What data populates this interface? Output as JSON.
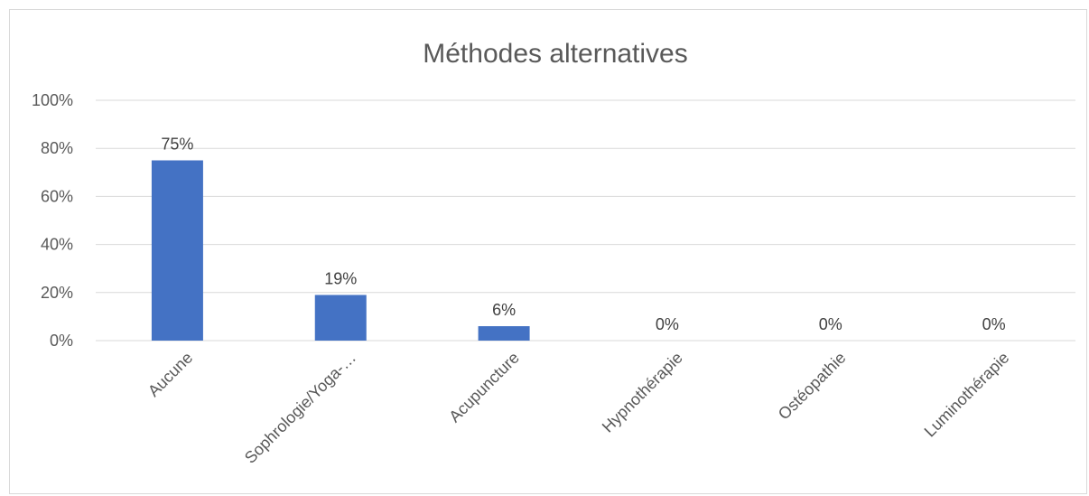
{
  "chart_data": {
    "type": "bar",
    "title": "Méthodes alternatives",
    "categories": [
      "Aucune",
      "Sophrologie/Yoga-…",
      "Acupuncture",
      "Hypnothérapie",
      "Ostéopathie",
      "Luminothérapie"
    ],
    "values": [
      75,
      19,
      6,
      0,
      0,
      0
    ],
    "data_labels": [
      "75%",
      "19%",
      "6%",
      "0%",
      "0%",
      "0%"
    ],
    "y_ticks": [
      0,
      20,
      40,
      60,
      80,
      100
    ],
    "y_tick_labels": [
      "0%",
      "20%",
      "40%",
      "60%",
      "80%",
      "100%"
    ],
    "ylim": [
      0,
      100
    ],
    "grid": true,
    "legend": "none",
    "bar_color": "#4472c4"
  }
}
